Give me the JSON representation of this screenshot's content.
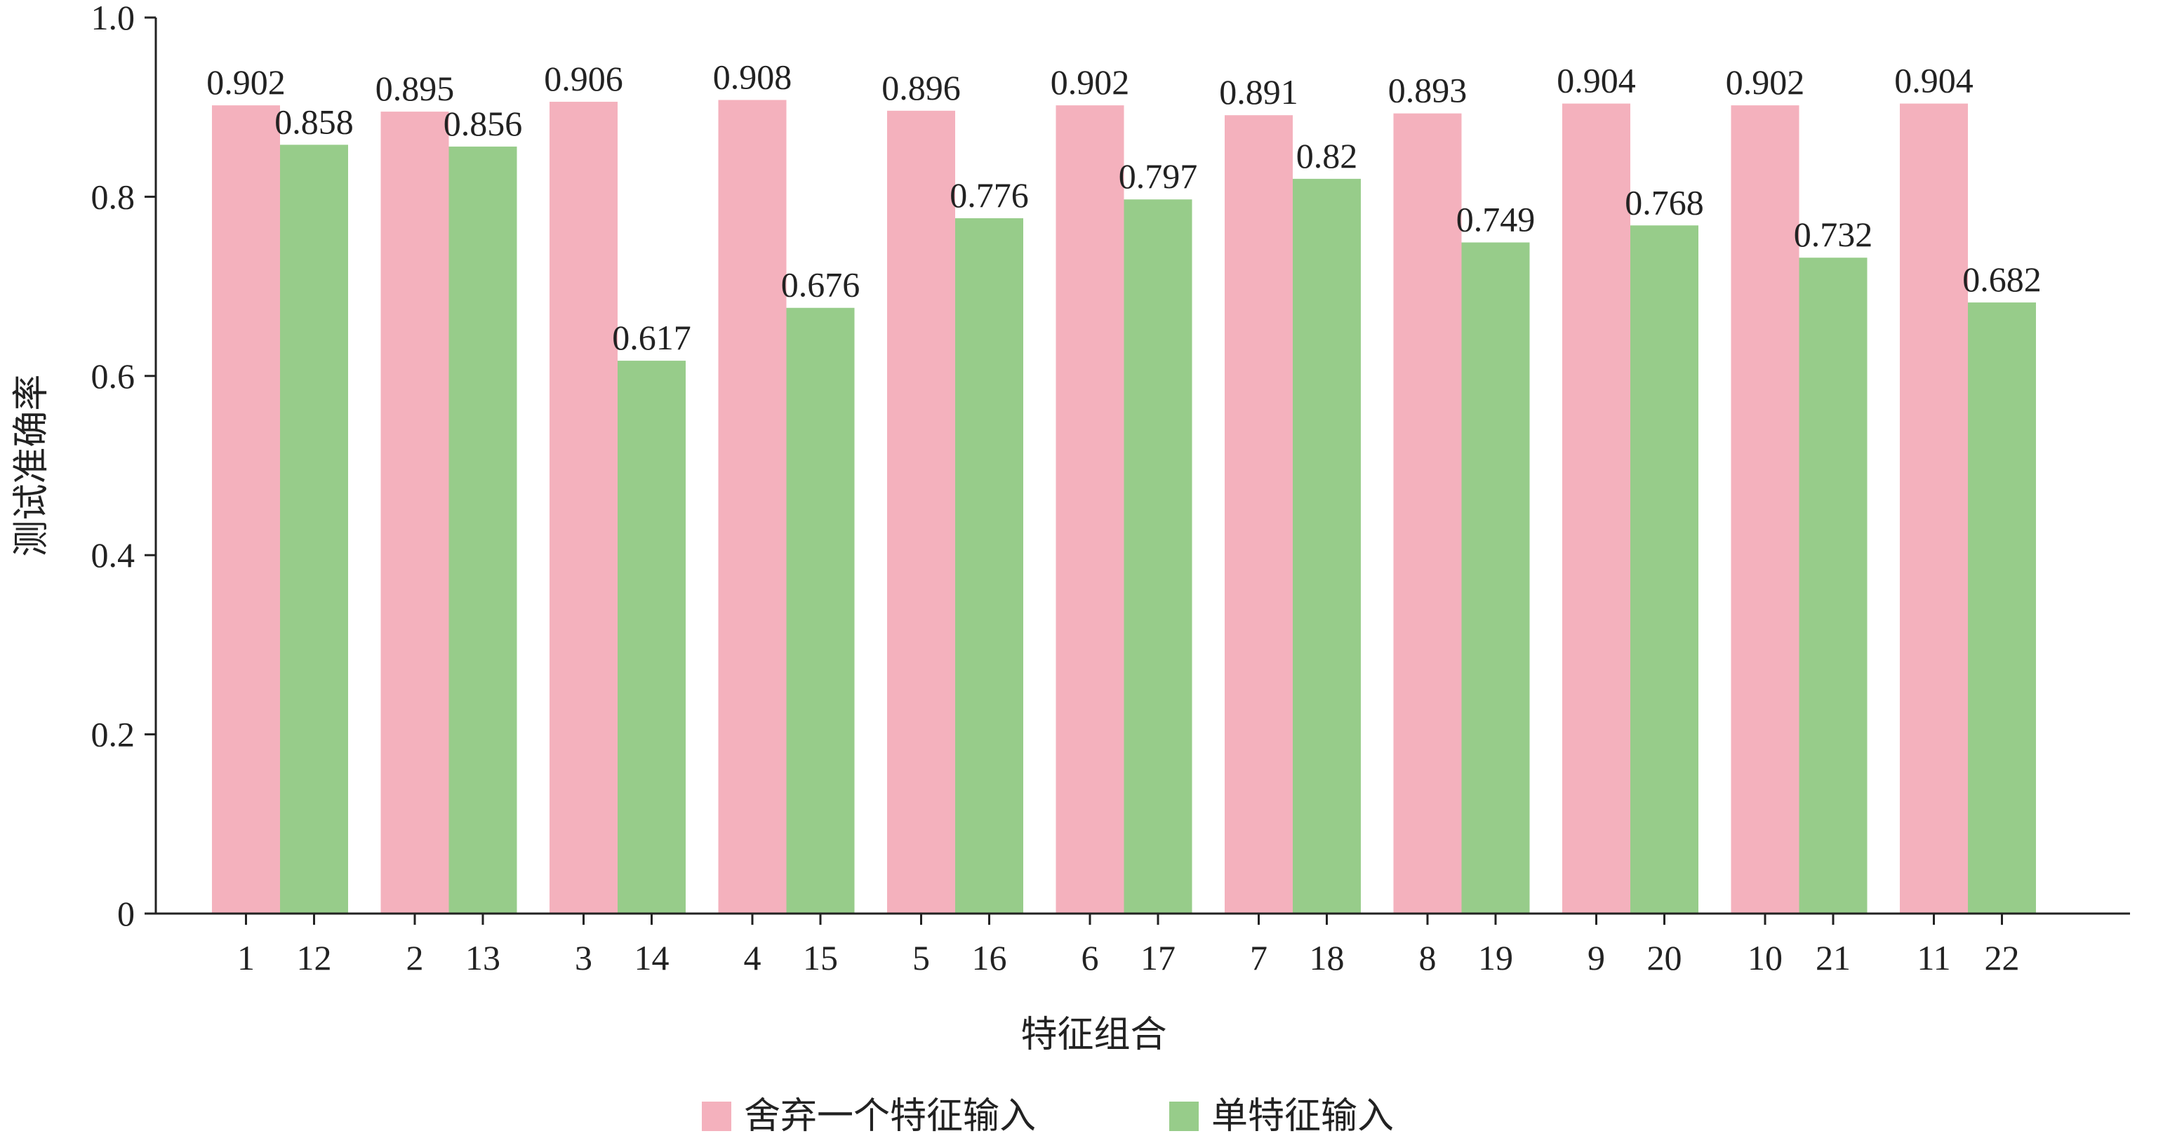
{
  "chart_data": {
    "type": "bar",
    "title": "",
    "xlabel": "特征组合",
    "ylabel": "测试准确率",
    "ylim": [
      0,
      1.0
    ],
    "yticks": [
      "0",
      "0.2",
      "0.4",
      "0.6",
      "0.8",
      "1.0"
    ],
    "ytick_values": [
      0,
      0.2,
      0.4,
      0.6,
      0.8,
      1.0
    ],
    "grid": false,
    "legend_position": "bottom",
    "groups": 11,
    "series": [
      {
        "name": "舍弃一个特征输入",
        "color": "#f4b1bd",
        "categories": [
          "1",
          "2",
          "3",
          "4",
          "5",
          "6",
          "7",
          "8",
          "9",
          "10",
          "11"
        ],
        "values": [
          0.902,
          0.895,
          0.906,
          0.908,
          0.896,
          0.902,
          0.891,
          0.893,
          0.904,
          0.902,
          0.904
        ],
        "labels": [
          "0.902",
          "0.895",
          "0.906",
          "0.908",
          "0.896",
          "0.902",
          "0.891",
          "0.893",
          "0.904",
          "0.902",
          "0.904"
        ]
      },
      {
        "name": "单特征输入",
        "color": "#97cc8a",
        "categories": [
          "12",
          "13",
          "14",
          "15",
          "16",
          "17",
          "18",
          "19",
          "20",
          "21",
          "22"
        ],
        "values": [
          0.858,
          0.856,
          0.617,
          0.676,
          0.776,
          0.797,
          0.82,
          0.749,
          0.768,
          0.732,
          0.682
        ],
        "labels": [
          "0.858",
          "0.856",
          "0.617",
          "0.676",
          "0.776",
          "0.797",
          "0.82",
          "0.749",
          "0.768",
          "0.732",
          "0.682"
        ]
      }
    ]
  }
}
